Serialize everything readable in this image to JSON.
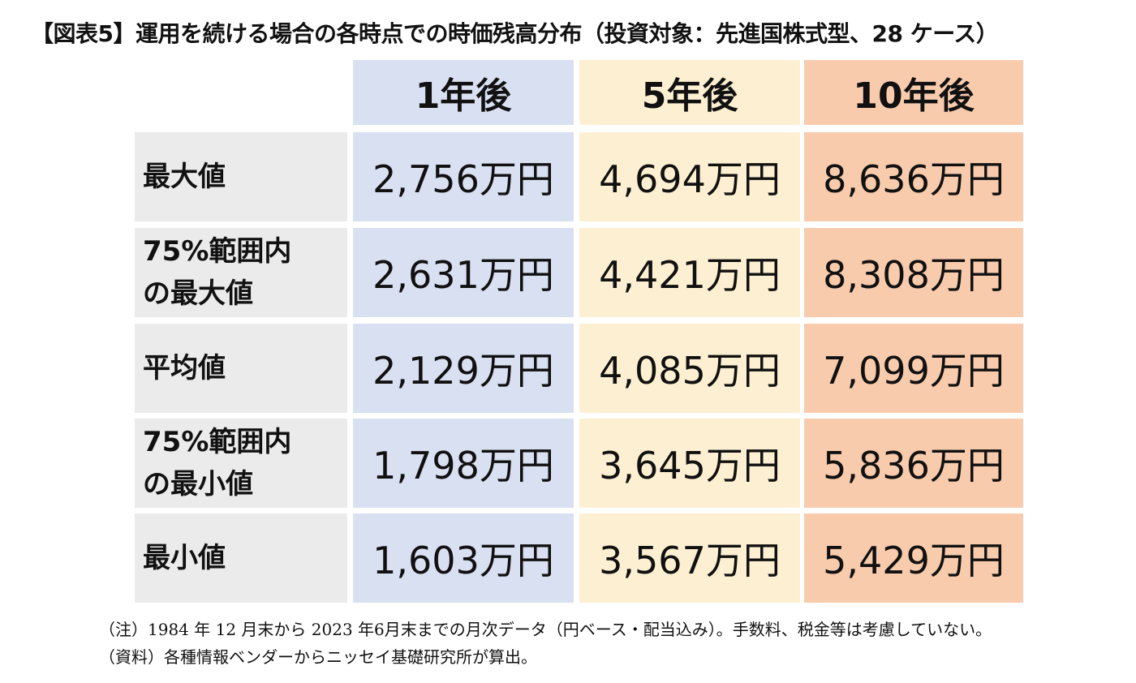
{
  "chart_data": {
    "type": "table",
    "title": "【図表5】運用を続ける場合の各時点での時価残高分布（投資対象：先進国株式型、28 ケース）",
    "columns": [
      "1年後",
      "5年後",
      "10年後"
    ],
    "column_colors": [
      "#d9e0f1",
      "#fdf0d2",
      "#f8cbad"
    ],
    "label_color": "#ebebeb",
    "rows": [
      {
        "label": "最大値",
        "values": [
          "2,756万円",
          "4,694万円",
          "8,636万円"
        ]
      },
      {
        "label": "75%範囲内\nの最大値",
        "values": [
          "2,631万円",
          "4,421万円",
          "8,308万円"
        ]
      },
      {
        "label": "平均値",
        "values": [
          "2,129万円",
          "4,085万円",
          "7,099万円"
        ]
      },
      {
        "label": "75%範囲内\nの最小値",
        "values": [
          "1,798万円",
          "3,645万円",
          "5,836万円"
        ]
      },
      {
        "label": "最小値",
        "values": [
          "1,603万円",
          "3,567万円",
          "5,429万円"
        ]
      }
    ],
    "notes": [
      "（注）1984 年 12 月末から 2023 年6月末までの月次データ（円ベース・配当込み）。手数料、税金等は考慮していない。",
      "（資料）各種情報ベンダーからニッセイ基礎研究所が算出。"
    ]
  }
}
